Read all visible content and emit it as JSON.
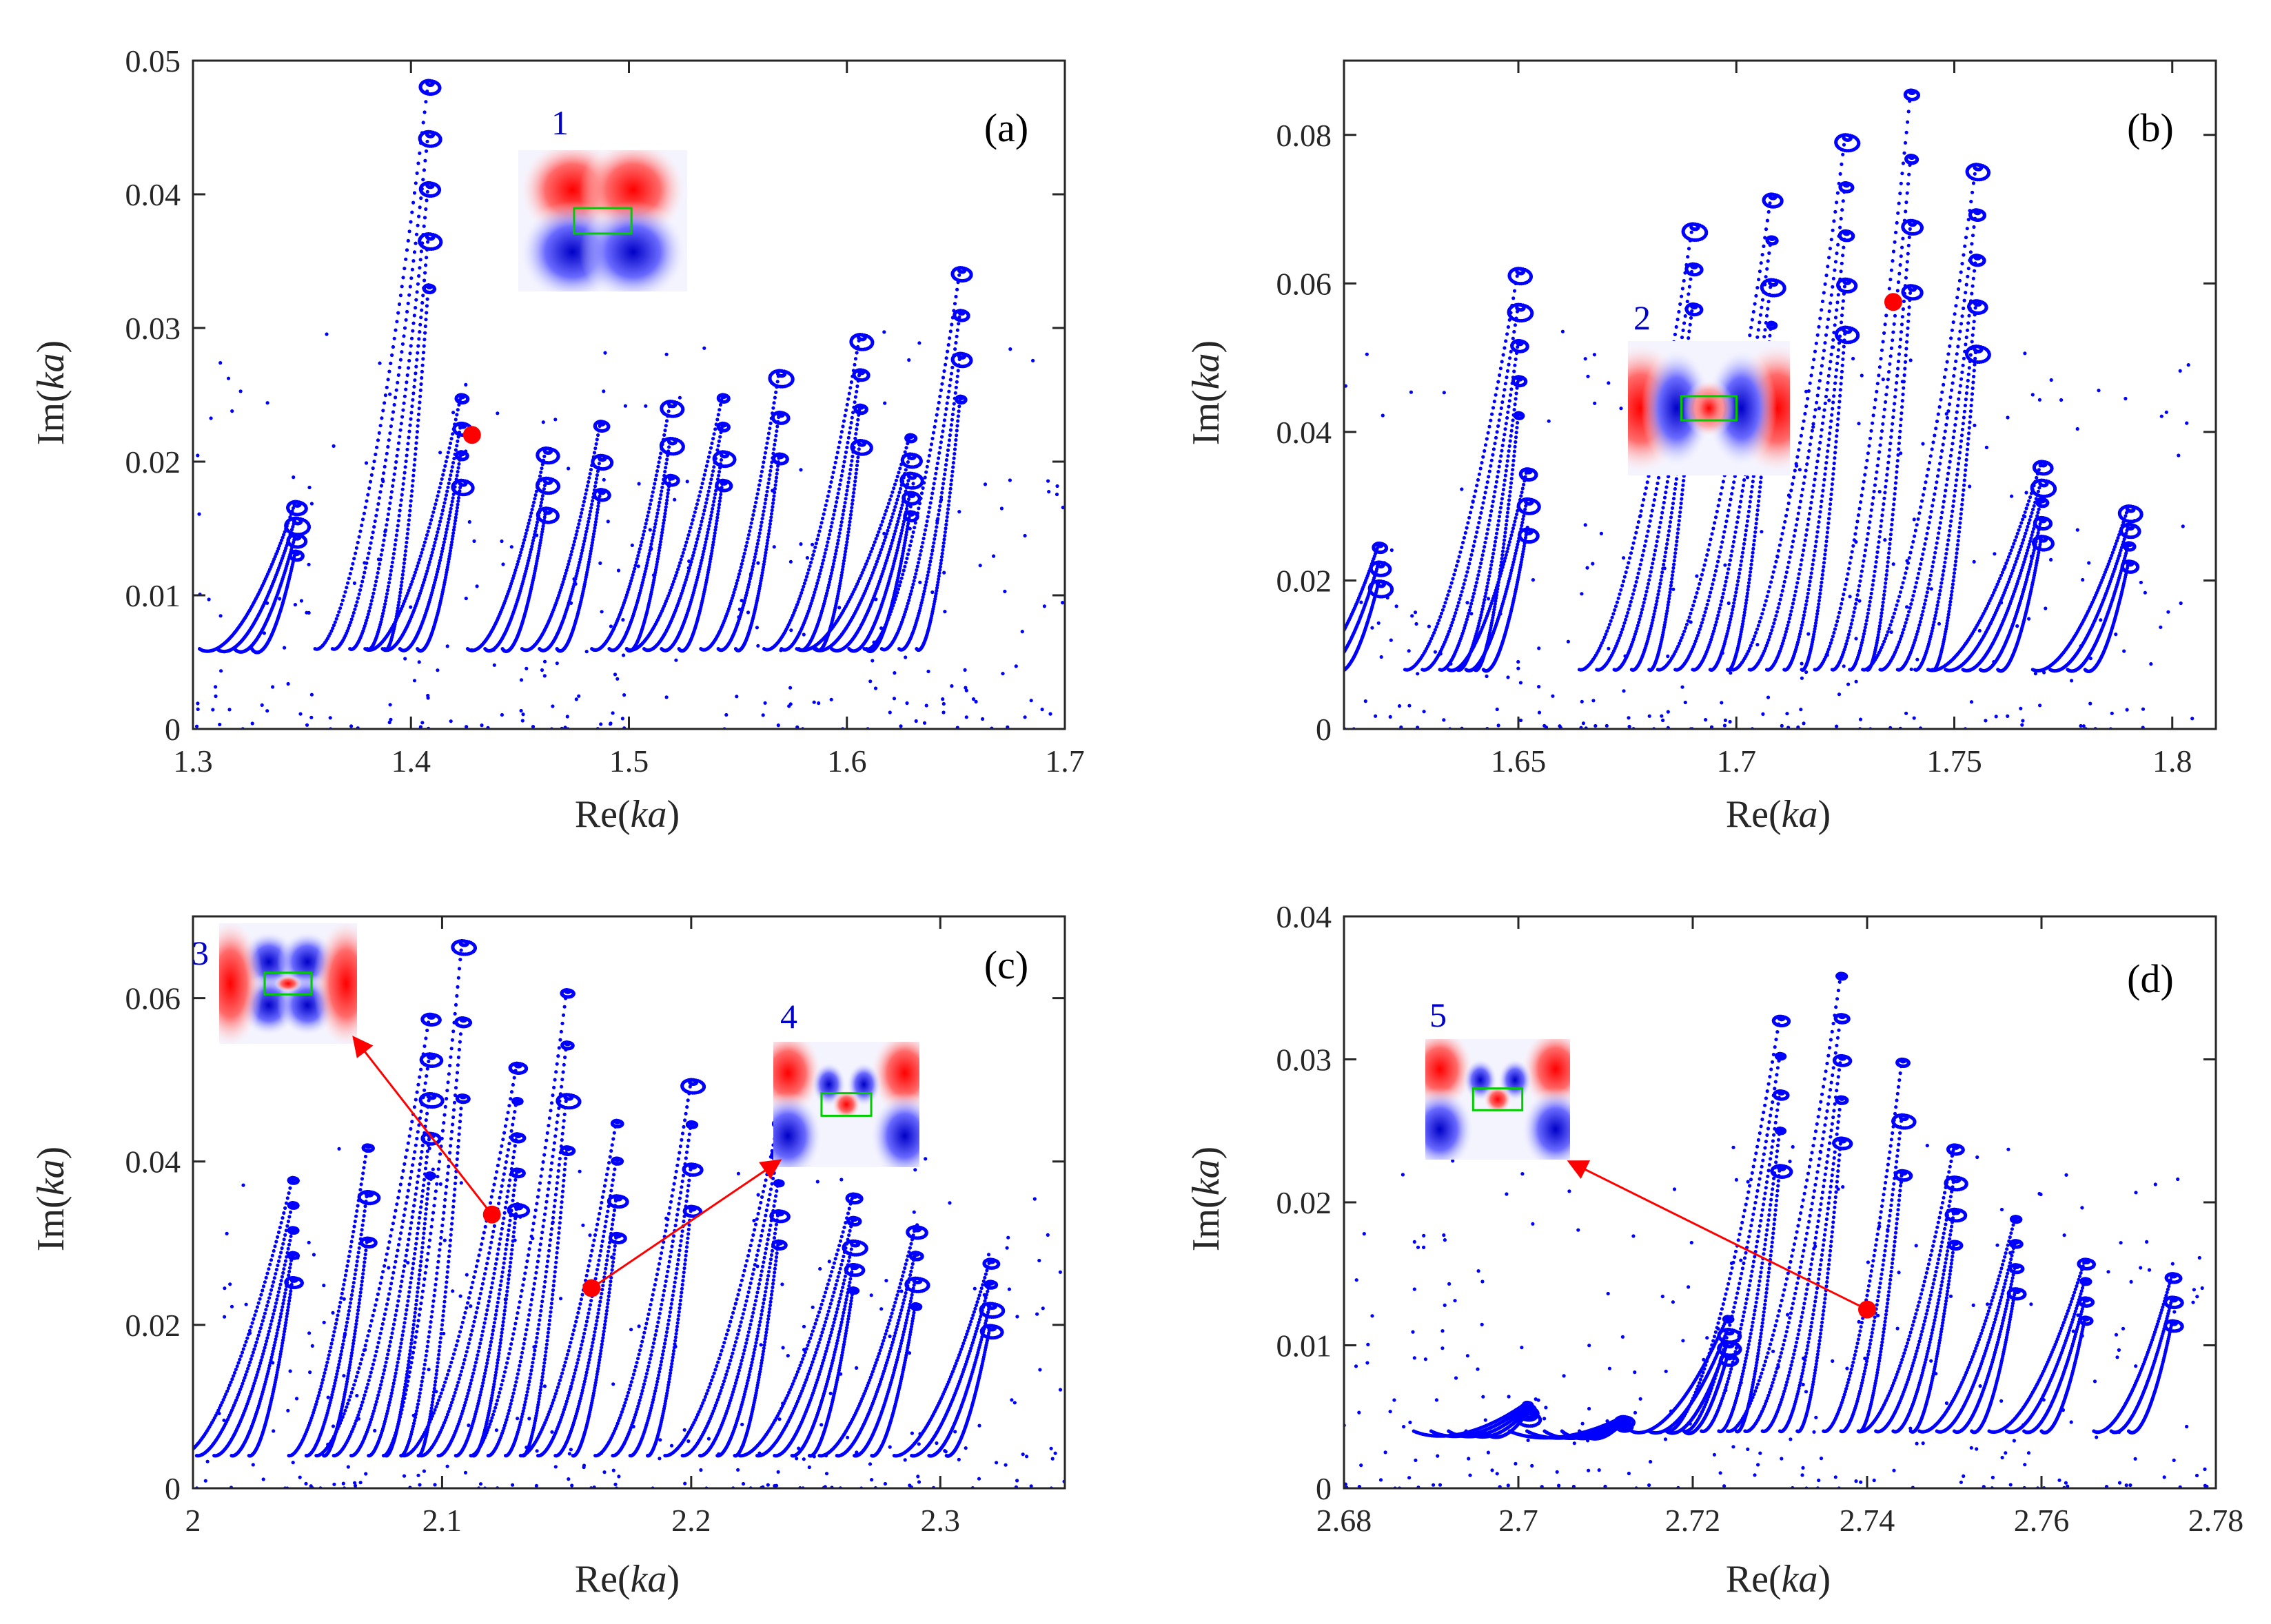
{
  "colors": {
    "trajectory": "#0000ff",
    "marker": "#ff0000",
    "arrow": "#ff0000",
    "axis": "#262626",
    "inset_box": "#00cc00",
    "inset_label": "#0000cc"
  },
  "chart_data": [
    {
      "id": "a",
      "type": "scatter",
      "panel_label": "(a)",
      "xlabel_prefix": "Re(",
      "xlabel_var": "ka",
      "xlabel_suffix": ")",
      "ylabel_prefix": "Im(",
      "ylabel_var": "ka",
      "ylabel_suffix": ")",
      "xlim": [
        1.3,
        1.7
      ],
      "ylim": [
        0,
        0.05
      ],
      "xticks": [
        1.3,
        1.4,
        1.5,
        1.6,
        1.7
      ],
      "xtick_labels": [
        "1.3",
        "1.4",
        "1.5",
        "1.6",
        "1.7"
      ],
      "yticks": [
        0,
        0.01,
        0.02,
        0.03,
        0.04,
        0.05
      ],
      "ytick_labels": [
        "0",
        "0.01",
        "0.02",
        "0.03",
        "0.04",
        "0.05"
      ],
      "markers": [
        {
          "x": 1.428,
          "y": 0.022
        }
      ],
      "insets": [
        {
          "number": "1",
          "pattern": "two-lobe"
        }
      ],
      "arrows": [],
      "peaks": [
        {
          "x": 1.347,
          "h": 0.017
        },
        {
          "x": 1.408,
          "h": 0.0485
        },
        {
          "x": 1.423,
          "h": 0.025
        },
        {
          "x": 1.462,
          "h": 0.021
        },
        {
          "x": 1.487,
          "h": 0.023
        },
        {
          "x": 1.519,
          "h": 0.0245
        },
        {
          "x": 1.543,
          "h": 0.025
        },
        {
          "x": 1.569,
          "h": 0.0268
        },
        {
          "x": 1.606,
          "h": 0.0295
        },
        {
          "x": 1.629,
          "h": 0.022
        },
        {
          "x": 1.652,
          "h": 0.0345
        }
      ],
      "base": 0.006
    },
    {
      "id": "b",
      "type": "scatter",
      "panel_label": "(b)",
      "xlabel_prefix": "Re(",
      "xlabel_var": "ka",
      "xlabel_suffix": ")",
      "ylabel_prefix": "Im(",
      "ylabel_var": "ka",
      "ylabel_suffix": ")",
      "xlim": [
        1.61,
        1.81
      ],
      "ylim": [
        0,
        0.09
      ],
      "xticks": [
        1.65,
        1.7,
        1.75,
        1.8
      ],
      "xtick_labels": [
        "1.65",
        "1.7",
        "1.75",
        "1.8"
      ],
      "yticks": [
        0,
        0.02,
        0.04,
        0.06,
        0.08
      ],
      "ytick_labels": [
        "0",
        "0.02",
        "0.04",
        "0.06",
        "0.08"
      ],
      "markers": [
        {
          "x": 1.736,
          "y": 0.0575
        }
      ],
      "insets": [
        {
          "number": "2",
          "pattern": "center-block"
        }
      ],
      "arrows": [],
      "peaks": [
        {
          "x": 1.618,
          "h": 0.025
        },
        {
          "x": 1.652,
          "h": 0.035
        },
        {
          "x": 1.65,
          "h": 0.062
        },
        {
          "x": 1.69,
          "h": 0.068
        },
        {
          "x": 1.708,
          "h": 0.072
        },
        {
          "x": 1.725,
          "h": 0.08
        },
        {
          "x": 1.74,
          "h": 0.086
        },
        {
          "x": 1.755,
          "h": 0.076
        },
        {
          "x": 1.77,
          "h": 0.036
        },
        {
          "x": 1.79,
          "h": 0.03
        }
      ],
      "base": 0.008
    },
    {
      "id": "c",
      "type": "scatter",
      "panel_label": "(c)",
      "xlabel_prefix": "Re(",
      "xlabel_var": "ka",
      "xlabel_suffix": ")",
      "ylabel_prefix": "Im(",
      "ylabel_var": "ka",
      "ylabel_suffix": ")",
      "xlim": [
        2.0,
        2.35
      ],
      "ylim": [
        0,
        0.07
      ],
      "xticks": [
        2.0,
        2.1,
        2.2,
        2.3
      ],
      "xtick_labels": [
        "2",
        "2.1",
        "2.2",
        "2.3"
      ],
      "yticks": [
        0,
        0.02,
        0.04,
        0.06
      ],
      "ytick_labels": [
        "0",
        "0.02",
        "0.04",
        "0.06"
      ],
      "markers": [
        {
          "x": 2.12,
          "y": 0.0335
        },
        {
          "x": 2.16,
          "y": 0.0245
        }
      ],
      "insets": [
        {
          "number": "3",
          "pattern": "quad"
        },
        {
          "number": "4",
          "pattern": "multi-lobe"
        }
      ],
      "arrows": [
        {
          "from": [
            2.12,
            0.0335
          ],
          "to": [
            2.065,
            0.055
          ]
        },
        {
          "from": [
            2.16,
            0.0245
          ],
          "to": [
            2.235,
            0.04
          ]
        }
      ],
      "peaks": [
        {
          "x": 2.04,
          "h": 0.038
        },
        {
          "x": 2.07,
          "h": 0.042
        },
        {
          "x": 2.095,
          "h": 0.058
        },
        {
          "x": 2.108,
          "h": 0.067
        },
        {
          "x": 2.13,
          "h": 0.052
        },
        {
          "x": 2.15,
          "h": 0.061
        },
        {
          "x": 2.17,
          "h": 0.045
        },
        {
          "x": 2.2,
          "h": 0.05
        },
        {
          "x": 2.235,
          "h": 0.045
        },
        {
          "x": 2.265,
          "h": 0.036
        },
        {
          "x": 2.29,
          "h": 0.032
        },
        {
          "x": 2.32,
          "h": 0.028
        }
      ],
      "base": 0.004
    },
    {
      "id": "d",
      "type": "scatter",
      "panel_label": "(d)",
      "xlabel_prefix": "Re(",
      "xlabel_var": "ka",
      "xlabel_suffix": ")",
      "ylabel_prefix": "Im(",
      "ylabel_var": "ka",
      "ylabel_suffix": ")",
      "xlim": [
        2.68,
        2.78
      ],
      "ylim": [
        0,
        0.04
      ],
      "xticks": [
        2.68,
        2.7,
        2.72,
        2.74,
        2.76,
        2.78
      ],
      "xtick_labels": [
        "2.68",
        "2.7",
        "2.72",
        "2.74",
        "2.76",
        "2.78"
      ],
      "yticks": [
        0,
        0.01,
        0.02,
        0.03,
        0.04
      ],
      "ytick_labels": [
        "0",
        "0.01",
        "0.02",
        "0.03",
        "0.04"
      ],
      "markers": [
        {
          "x": 2.74,
          "y": 0.0125
        }
      ],
      "insets": [
        {
          "number": "5",
          "pattern": "multi-lobe"
        }
      ],
      "arrows": [
        {
          "from": [
            2.74,
            0.0125
          ],
          "to": [
            2.706,
            0.0228
          ]
        }
      ],
      "peaks": [
        {
          "x": 2.701,
          "h": 0.006
        },
        {
          "x": 2.712,
          "h": 0.005
        },
        {
          "x": 2.724,
          "h": 0.012
        },
        {
          "x": 2.73,
          "h": 0.033
        },
        {
          "x": 2.737,
          "h": 0.036
        },
        {
          "x": 2.744,
          "h": 0.03
        },
        {
          "x": 2.75,
          "h": 0.024
        },
        {
          "x": 2.757,
          "h": 0.019
        },
        {
          "x": 2.765,
          "h": 0.016
        },
        {
          "x": 2.775,
          "h": 0.015
        }
      ],
      "base": 0.004
    }
  ]
}
